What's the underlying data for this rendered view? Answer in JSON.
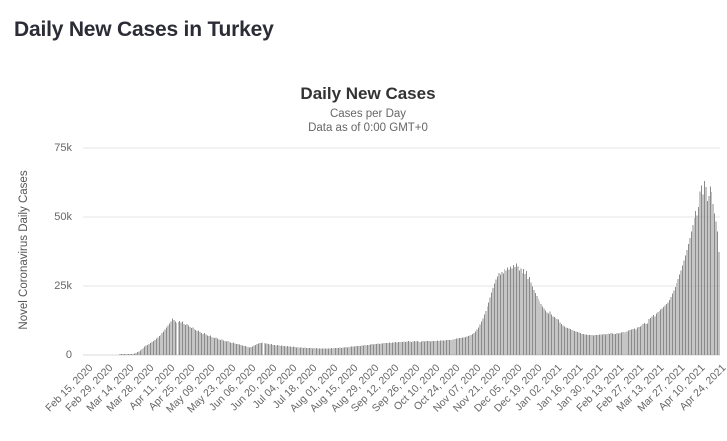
{
  "page": {
    "heading": "Daily New Cases in Turkey"
  },
  "chart": {
    "title": "Daily New Cases",
    "subtitle1": "Cases per Day",
    "subtitle2": "Data as of 0:00 GMT+0",
    "y_axis_title": "Novel Coronavirus Daily Cases",
    "colors": {
      "bar": "#8b8b8b",
      "grid": "#e6e6e6",
      "baseline": "#d8d8d8"
    }
  },
  "chart_data": {
    "type": "bar",
    "title": "Daily New Cases",
    "subtitle": [
      "Cases per Day",
      "Data as of 0:00 GMT+0"
    ],
    "ylabel": "Novel Coronavirus Daily Cases",
    "xlabel": "",
    "ylim": [
      0,
      75000
    ],
    "y_tick_values": [
      0,
      25000,
      50000,
      75000
    ],
    "y_tick_labels": [
      "0",
      "25k",
      "50k",
      "75k"
    ],
    "grid": "horizontal",
    "legend": false,
    "x_start_date": "2020-02-15",
    "x_end_date": "2021-04-26",
    "x_interval": "daily",
    "x_tick_every_days": 14,
    "x_tick_labels": [
      "Feb 15, 2020",
      "Feb 29, 2020",
      "Mar 14, 2020",
      "Mar 28, 2020",
      "Apr 11, 2020",
      "Apr 25, 2020",
      "May 09, 2020",
      "May 23, 2020",
      "Jun 06, 2020",
      "Jun 20, 2020",
      "Jul 04, 2020",
      "Jul 18, 2020",
      "Aug 01, 2020",
      "Aug 15, 2020",
      "Aug 29, 2020",
      "Sep 12, 2020",
      "Sep 26, 2020",
      "Oct 10, 2020",
      "Oct 24, 2020",
      "Nov 07, 2020",
      "Nov 21, 2020",
      "Dec 05, 2020",
      "Dec 19, 2020",
      "Jan 02, 2021",
      "Jan 16, 2021",
      "Jan 30, 2021",
      "Feb 13, 2021",
      "Feb 27, 2021",
      "Mar 13, 2021",
      "Mar 27, 2021",
      "Apr 10, 2021",
      "Apr 24, 2021"
    ],
    "values": [
      0,
      0,
      0,
      0,
      0,
      0,
      0,
      0,
      0,
      0,
      0,
      0,
      0,
      0,
      0,
      0,
      0,
      0,
      0,
      0,
      0,
      0,
      0,
      0,
      0,
      1,
      1,
      5,
      5,
      6,
      18,
      40,
      110,
      190,
      310,
      460,
      700,
      1000,
      1300,
      1700,
      2100,
      2600,
      3000,
      3400,
      3700,
      4000,
      4300,
      4700,
      5100,
      5500,
      5900,
      6300,
      6800,
      7300,
      7900,
      8600,
      9300,
      10000,
      10700,
      11400,
      12200,
      13300,
      12700,
      12100,
      11600,
      11900,
      12400,
      11800,
      12200,
      11300,
      10900,
      11200,
      10600,
      10100,
      9700,
      9900,
      9400,
      9000,
      8700,
      8900,
      8300,
      8000,
      7700,
      7900,
      7400,
      7100,
      6900,
      7000,
      6600,
      6400,
      6200,
      6300,
      5900,
      5700,
      5500,
      5600,
      5300,
      5100,
      4900,
      5000,
      4700,
      4500,
      4400,
      4500,
      4200,
      4000,
      3900,
      3800,
      3600,
      3400,
      3300,
      3200,
      3000,
      2900,
      2800,
      2900,
      3100,
      3400,
      3700,
      4000,
      4200,
      4400,
      4300,
      4500,
      4400,
      4200,
      4100,
      3900,
      3800,
      3900,
      3700,
      3600,
      3500,
      3600,
      3400,
      3300,
      3400,
      3200,
      3300,
      3100,
      3200,
      3000,
      3100,
      2900,
      3000,
      2900,
      2800,
      2900,
      2700,
      2800,
      2700,
      2600,
      2700,
      2600,
      2500,
      2600,
      2500,
      2400,
      2500,
      2400,
      2500,
      2400,
      2300,
      2400,
      2300,
      2400,
      2300,
      2400,
      2300,
      2400,
      2500,
      2400,
      2500,
      2600,
      2500,
      2600,
      2700,
      2600,
      2700,
      2800,
      2900,
      2800,
      2900,
      3000,
      3100,
      3000,
      3100,
      3200,
      3300,
      3200,
      3300,
      3400,
      3500,
      3600,
      3500,
      3600,
      3700,
      3800,
      3900,
      3800,
      3900,
      4000,
      4100,
      4000,
      4100,
      4200,
      4300,
      4400,
      4300,
      4400,
      4500,
      4400,
      4500,
      4600,
      4700,
      4600,
      4700,
      4800,
      4700,
      4800,
      4900,
      4800,
      4900,
      5000,
      4900,
      4800,
      4900,
      5000,
      4900,
      5000,
      4900,
      4800,
      4900,
      5000,
      4900,
      5000,
      5100,
      5000,
      4900,
      5000,
      5100,
      5000,
      5100,
      5200,
      5100,
      5200,
      5300,
      5200,
      5300,
      5400,
      5500,
      5400,
      5500,
      5600,
      5700,
      5800,
      5900,
      6000,
      6100,
      6200,
      6300,
      6400,
      6500,
      6700,
      6900,
      7100,
      7300,
      7600,
      8000,
      8500,
      9200,
      10000,
      11000,
      12100,
      13300,
      14600,
      16000,
      17500,
      19100,
      20800,
      22600,
      24300,
      25900,
      27400,
      28400,
      29800,
      29100,
      30100,
      29600,
      31200,
      30600,
      31700,
      30900,
      32100,
      31300,
      32600,
      31900,
      33200,
      32100,
      30700,
      31400,
      29700,
      31100,
      29400,
      30400,
      27500,
      28300,
      26200,
      24900,
      23600,
      22400,
      21300,
      20300,
      19300,
      18400,
      17600,
      16800,
      16100,
      15400,
      15100,
      15800,
      14600,
      14000,
      13700,
      13400,
      13100,
      12800,
      11800,
      11200,
      10600,
      10300,
      10000,
      9800,
      9600,
      9400,
      9100,
      8900,
      8700,
      8500,
      8300,
      8100,
      7900,
      7700,
      7600,
      7500,
      7400,
      7300,
      7200,
      7300,
      7200,
      7100,
      7200,
      7300,
      7200,
      7400,
      7500,
      7400,
      7600,
      7500,
      7700,
      7800,
      7700,
      7900,
      7800,
      7700,
      7600,
      7900,
      7800,
      8000,
      8100,
      8300,
      8200,
      8400,
      8600,
      8800,
      9000,
      9200,
      9400,
      9600,
      9200,
      9900,
      10100,
      10400,
      10700,
      11300,
      11600,
      11200,
      11500,
      13000,
      13400,
      13900,
      14500,
      14000,
      15100,
      15500,
      16000,
      16400,
      16900,
      17400,
      18000,
      18500,
      19100,
      19900,
      21000,
      22200,
      23400,
      24700,
      26100,
      27600,
      29100,
      30700,
      32400,
      34200,
      36100,
      38100,
      40200,
      42400,
      44700,
      47100,
      49600,
      52200,
      50600,
      53600,
      59200,
      61400,
      58100,
      63100,
      60800,
      55800,
      57600,
      61000,
      59000,
      54800,
      51200,
      48400,
      44700,
      37300
    ]
  }
}
